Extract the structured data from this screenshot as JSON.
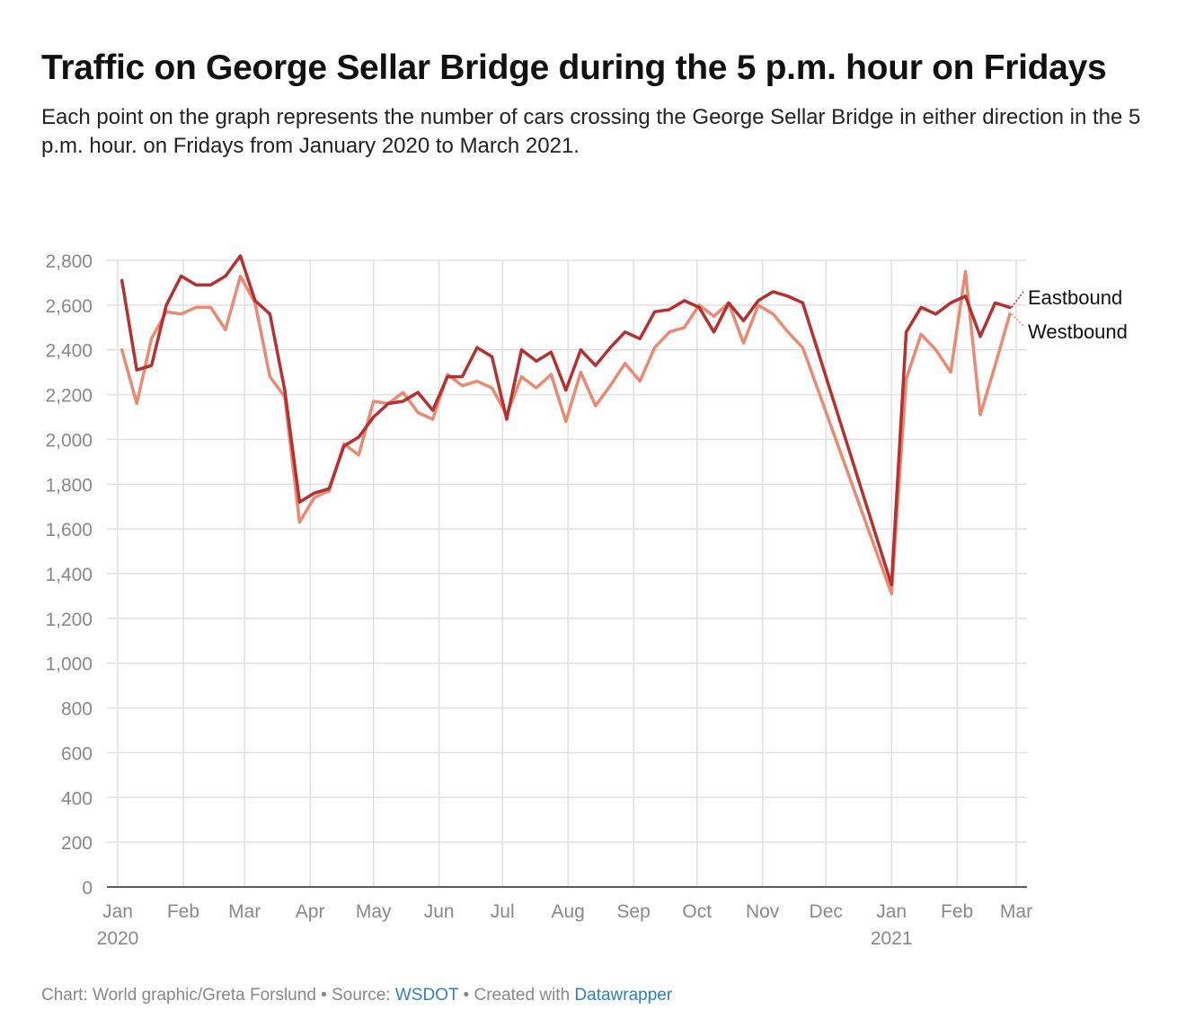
{
  "header": {
    "title": "Traffic on George Sellar Bridge during the 5 p.m. hour on Fridays",
    "subtitle": "Each point on the graph represents the number of cars crossing the George Sellar Bridge in either direction in the 5 p.m. hour. on Fridays from January 2020 to March 2021."
  },
  "footer": {
    "chart_credit": "Chart: World graphic/Greta Forslund",
    "sep1": " • ",
    "source_label": "Source: ",
    "source_link": "WSDOT",
    "sep2": " • ",
    "created_label": "Created with ",
    "created_link": "Datawrapper"
  },
  "colors": {
    "eastbound": "#b5302e",
    "westbound": "#ea8a72",
    "grid": "#e0e0e0",
    "axis": "#222222"
  },
  "chart_data": {
    "type": "line",
    "title": "Traffic on George Sellar Bridge during the 5 p.m. hour on Fridays",
    "xlabel": "",
    "ylabel": "",
    "ylim": [
      0,
      2800
    ],
    "yticks": [
      0,
      200,
      400,
      600,
      800,
      1000,
      1200,
      1400,
      1600,
      1800,
      2000,
      2200,
      2400,
      2600,
      2800
    ],
    "ytick_labels": [
      "0",
      "200",
      "400",
      "600",
      "800",
      "1,000",
      "1,200",
      "1,400",
      "1,600",
      "1,800",
      "2,000",
      "2,200",
      "2,400",
      "2,600",
      "2,800"
    ],
    "xlim": [
      "2020-01-01",
      "2021-03-01"
    ],
    "xticks": [
      {
        "date": "2020-01-01",
        "label": "Jan",
        "sublabel": "2020"
      },
      {
        "date": "2020-02-01",
        "label": "Feb",
        "sublabel": ""
      },
      {
        "date": "2020-03-01",
        "label": "Mar",
        "sublabel": ""
      },
      {
        "date": "2020-04-01",
        "label": "Apr",
        "sublabel": ""
      },
      {
        "date": "2020-05-01",
        "label": "May",
        "sublabel": ""
      },
      {
        "date": "2020-06-01",
        "label": "Jun",
        "sublabel": ""
      },
      {
        "date": "2020-07-01",
        "label": "Jul",
        "sublabel": ""
      },
      {
        "date": "2020-08-01",
        "label": "Aug",
        "sublabel": ""
      },
      {
        "date": "2020-09-01",
        "label": "Sep",
        "sublabel": ""
      },
      {
        "date": "2020-10-01",
        "label": "Oct",
        "sublabel": ""
      },
      {
        "date": "2020-11-01",
        "label": "Nov",
        "sublabel": ""
      },
      {
        "date": "2020-12-01",
        "label": "Dec",
        "sublabel": ""
      },
      {
        "date": "2021-01-01",
        "label": "Jan",
        "sublabel": "2021"
      },
      {
        "date": "2021-02-01",
        "label": "Feb",
        "sublabel": ""
      },
      {
        "date": "2021-03-01",
        "label": "Mar",
        "sublabel": ""
      }
    ],
    "grid": true,
    "legend": "right",
    "x": [
      "2020-01-03",
      "2020-01-10",
      "2020-01-17",
      "2020-01-24",
      "2020-01-31",
      "2020-02-07",
      "2020-02-14",
      "2020-02-21",
      "2020-02-28",
      "2020-03-06",
      "2020-03-13",
      "2020-03-20",
      "2020-03-27",
      "2020-04-03",
      "2020-04-10",
      "2020-04-17",
      "2020-04-24",
      "2020-05-01",
      "2020-05-08",
      "2020-05-15",
      "2020-05-22",
      "2020-05-29",
      "2020-06-05",
      "2020-06-12",
      "2020-06-19",
      "2020-06-26",
      "2020-07-03",
      "2020-07-10",
      "2020-07-17",
      "2020-07-24",
      "2020-07-31",
      "2020-08-07",
      "2020-08-14",
      "2020-08-21",
      "2020-08-28",
      "2020-09-04",
      "2020-09-11",
      "2020-09-18",
      "2020-09-25",
      "2020-10-02",
      "2020-10-09",
      "2020-10-16",
      "2020-10-23",
      "2020-10-30",
      "2020-11-06",
      "2020-11-13",
      "2020-11-20",
      "2021-01-01",
      "2021-01-08",
      "2021-01-15",
      "2021-01-22",
      "2021-01-29",
      "2021-02-05",
      "2021-02-12",
      "2021-02-19",
      "2021-02-26"
    ],
    "series": [
      {
        "name": "Eastbound",
        "color": "#b5302e",
        "values": [
          2710,
          2310,
          2330,
          2600,
          2730,
          2690,
          2690,
          2730,
          2820,
          2620,
          2560,
          2220,
          1720,
          1760,
          1780,
          1970,
          2010,
          2100,
          2160,
          2170,
          2210,
          2130,
          2280,
          2280,
          2410,
          2370,
          2090,
          2400,
          2350,
          2390,
          2220,
          2400,
          2330,
          2410,
          2480,
          2450,
          2570,
          2580,
          2620,
          2590,
          2480,
          2610,
          2530,
          2620,
          2660,
          2640,
          2610,
          1350,
          2480,
          2590,
          2560,
          2610,
          2640,
          2460,
          2610,
          2590
        ]
      },
      {
        "name": "Westbound",
        "color": "#ea8a72",
        "values": [
          2400,
          2160,
          2450,
          2570,
          2560,
          2590,
          2590,
          2490,
          2730,
          2610,
          2280,
          2190,
          1630,
          1740,
          1770,
          1980,
          1930,
          2170,
          2160,
          2210,
          2120,
          2090,
          2290,
          2240,
          2260,
          2230,
          2110,
          2280,
          2230,
          2290,
          2080,
          2300,
          2150,
          2240,
          2340,
          2260,
          2410,
          2480,
          2500,
          2600,
          2550,
          2610,
          2430,
          2600,
          2560,
          2480,
          2410,
          1310,
          2270,
          2470,
          2400,
          2300,
          2750,
          2110,
          2330,
          2560
        ]
      }
    ]
  }
}
